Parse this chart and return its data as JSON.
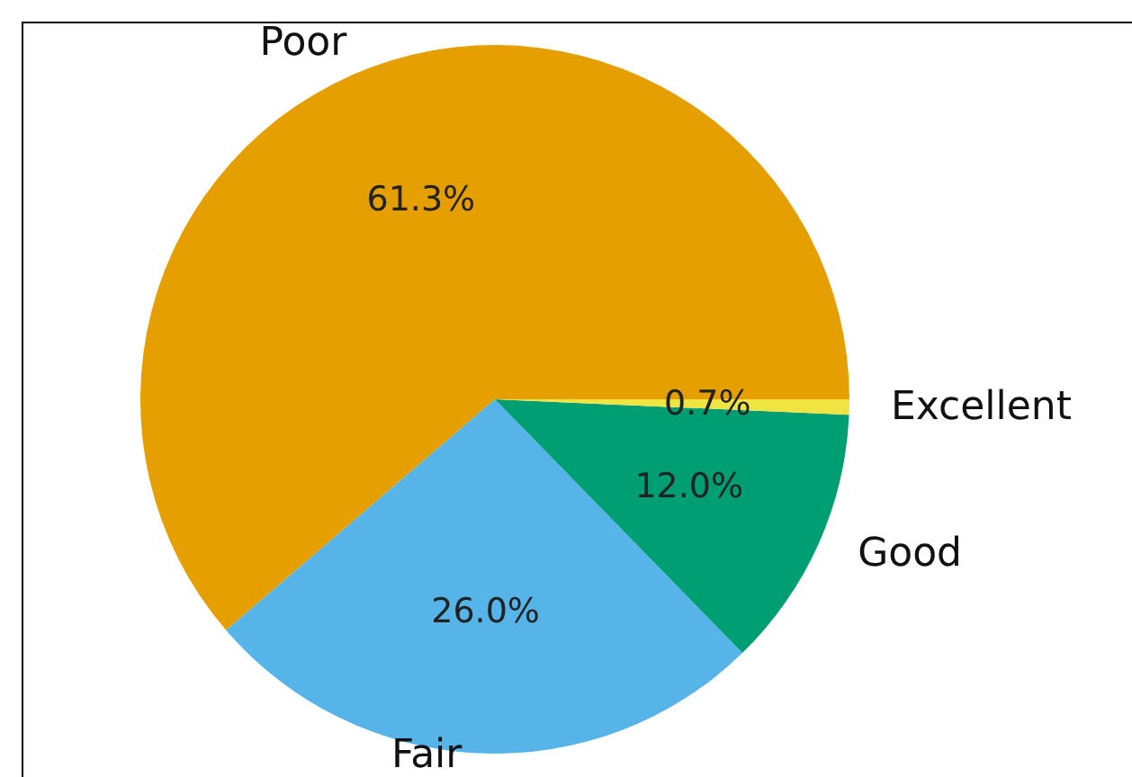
{
  "chart_data": {
    "type": "pie",
    "categories": [
      "Poor",
      "Fair",
      "Good",
      "Excellent"
    ],
    "values": [
      61.3,
      26.0,
      12.0,
      0.7
    ],
    "colors": [
      "#e69f00",
      "#56b4e9",
      "#009e73",
      "#f0e442"
    ],
    "value_labels": [
      "61.3%",
      "26.0%",
      "12.0%",
      "0.7%"
    ]
  }
}
